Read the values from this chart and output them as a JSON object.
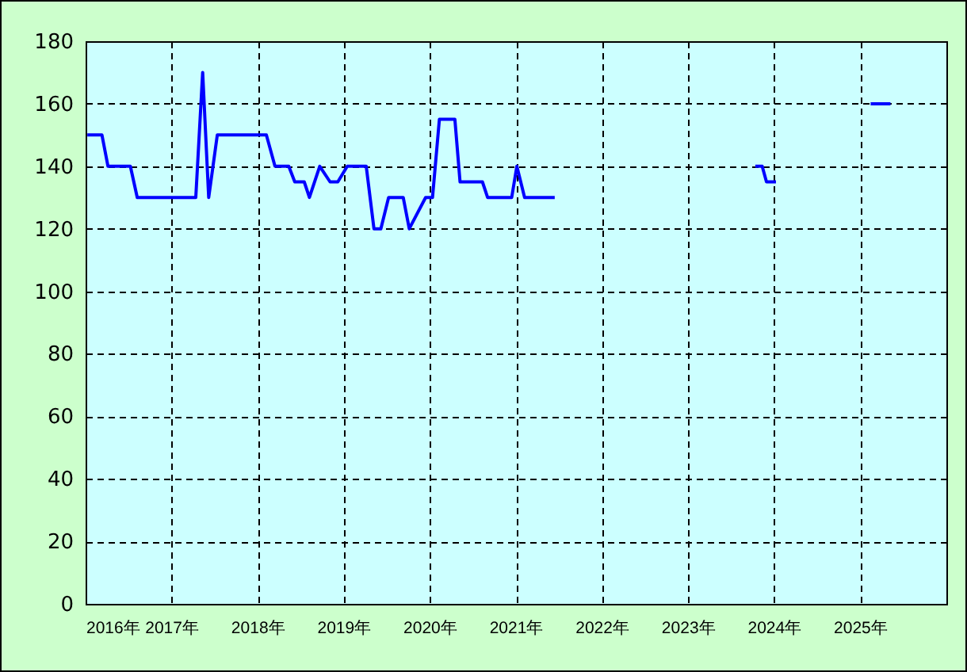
{
  "chart_data": {
    "type": "line",
    "x": [
      2016.02,
      2016.19,
      2016.26,
      2016.52,
      2016.6,
      2017.28,
      2017.36,
      2017.43,
      2017.53,
      2018.1,
      2018.2,
      2018.36,
      2018.43,
      2018.54,
      2018.6,
      2018.72,
      2018.84,
      2018.93,
      2019.04,
      2019.26,
      2019.35,
      2019.43,
      2019.52,
      2019.69,
      2019.76,
      2019.95,
      2020.03,
      2020.11,
      2020.29,
      2020.35,
      2020.61,
      2020.67,
      2020.95,
      2021.01,
      2021.1,
      2021.45,
      2022.5,
      2023.78,
      2023.86,
      2023.91,
      2024.02,
      2024.5,
      2025.12,
      2025.35
    ],
    "series": [
      {
        "color": "#0000ff",
        "values": [
          150,
          150,
          140,
          140,
          130,
          130,
          170,
          130,
          150,
          150,
          140,
          140,
          135,
          135,
          130,
          140,
          135,
          135,
          140,
          140,
          120,
          120,
          130,
          130,
          120,
          130,
          130,
          155,
          155,
          135,
          135,
          130,
          130,
          140,
          130,
          130,
          null,
          140,
          140,
          135,
          135,
          null,
          160,
          160
        ]
      }
    ],
    "xlim": [
      2016,
      2026
    ],
    "xticks": [
      {
        "value": 2016,
        "label": "2016年"
      },
      {
        "value": 2017,
        "label": "2017年"
      },
      {
        "value": 2018,
        "label": "2018年"
      },
      {
        "value": 2019,
        "label": "2019年"
      },
      {
        "value": 2020,
        "label": "2020年"
      },
      {
        "value": 2021,
        "label": "2021年"
      },
      {
        "value": 2022,
        "label": "2022年"
      },
      {
        "value": 2023,
        "label": "2023年"
      },
      {
        "value": 2024,
        "label": "2024年"
      },
      {
        "value": 2025,
        "label": "2025年"
      }
    ],
    "ylim": [
      0,
      180
    ],
    "yticks": [
      0,
      20,
      40,
      60,
      80,
      100,
      120,
      140,
      160,
      180
    ],
    "grid": true,
    "marker": "none",
    "line_style": "solid"
  }
}
